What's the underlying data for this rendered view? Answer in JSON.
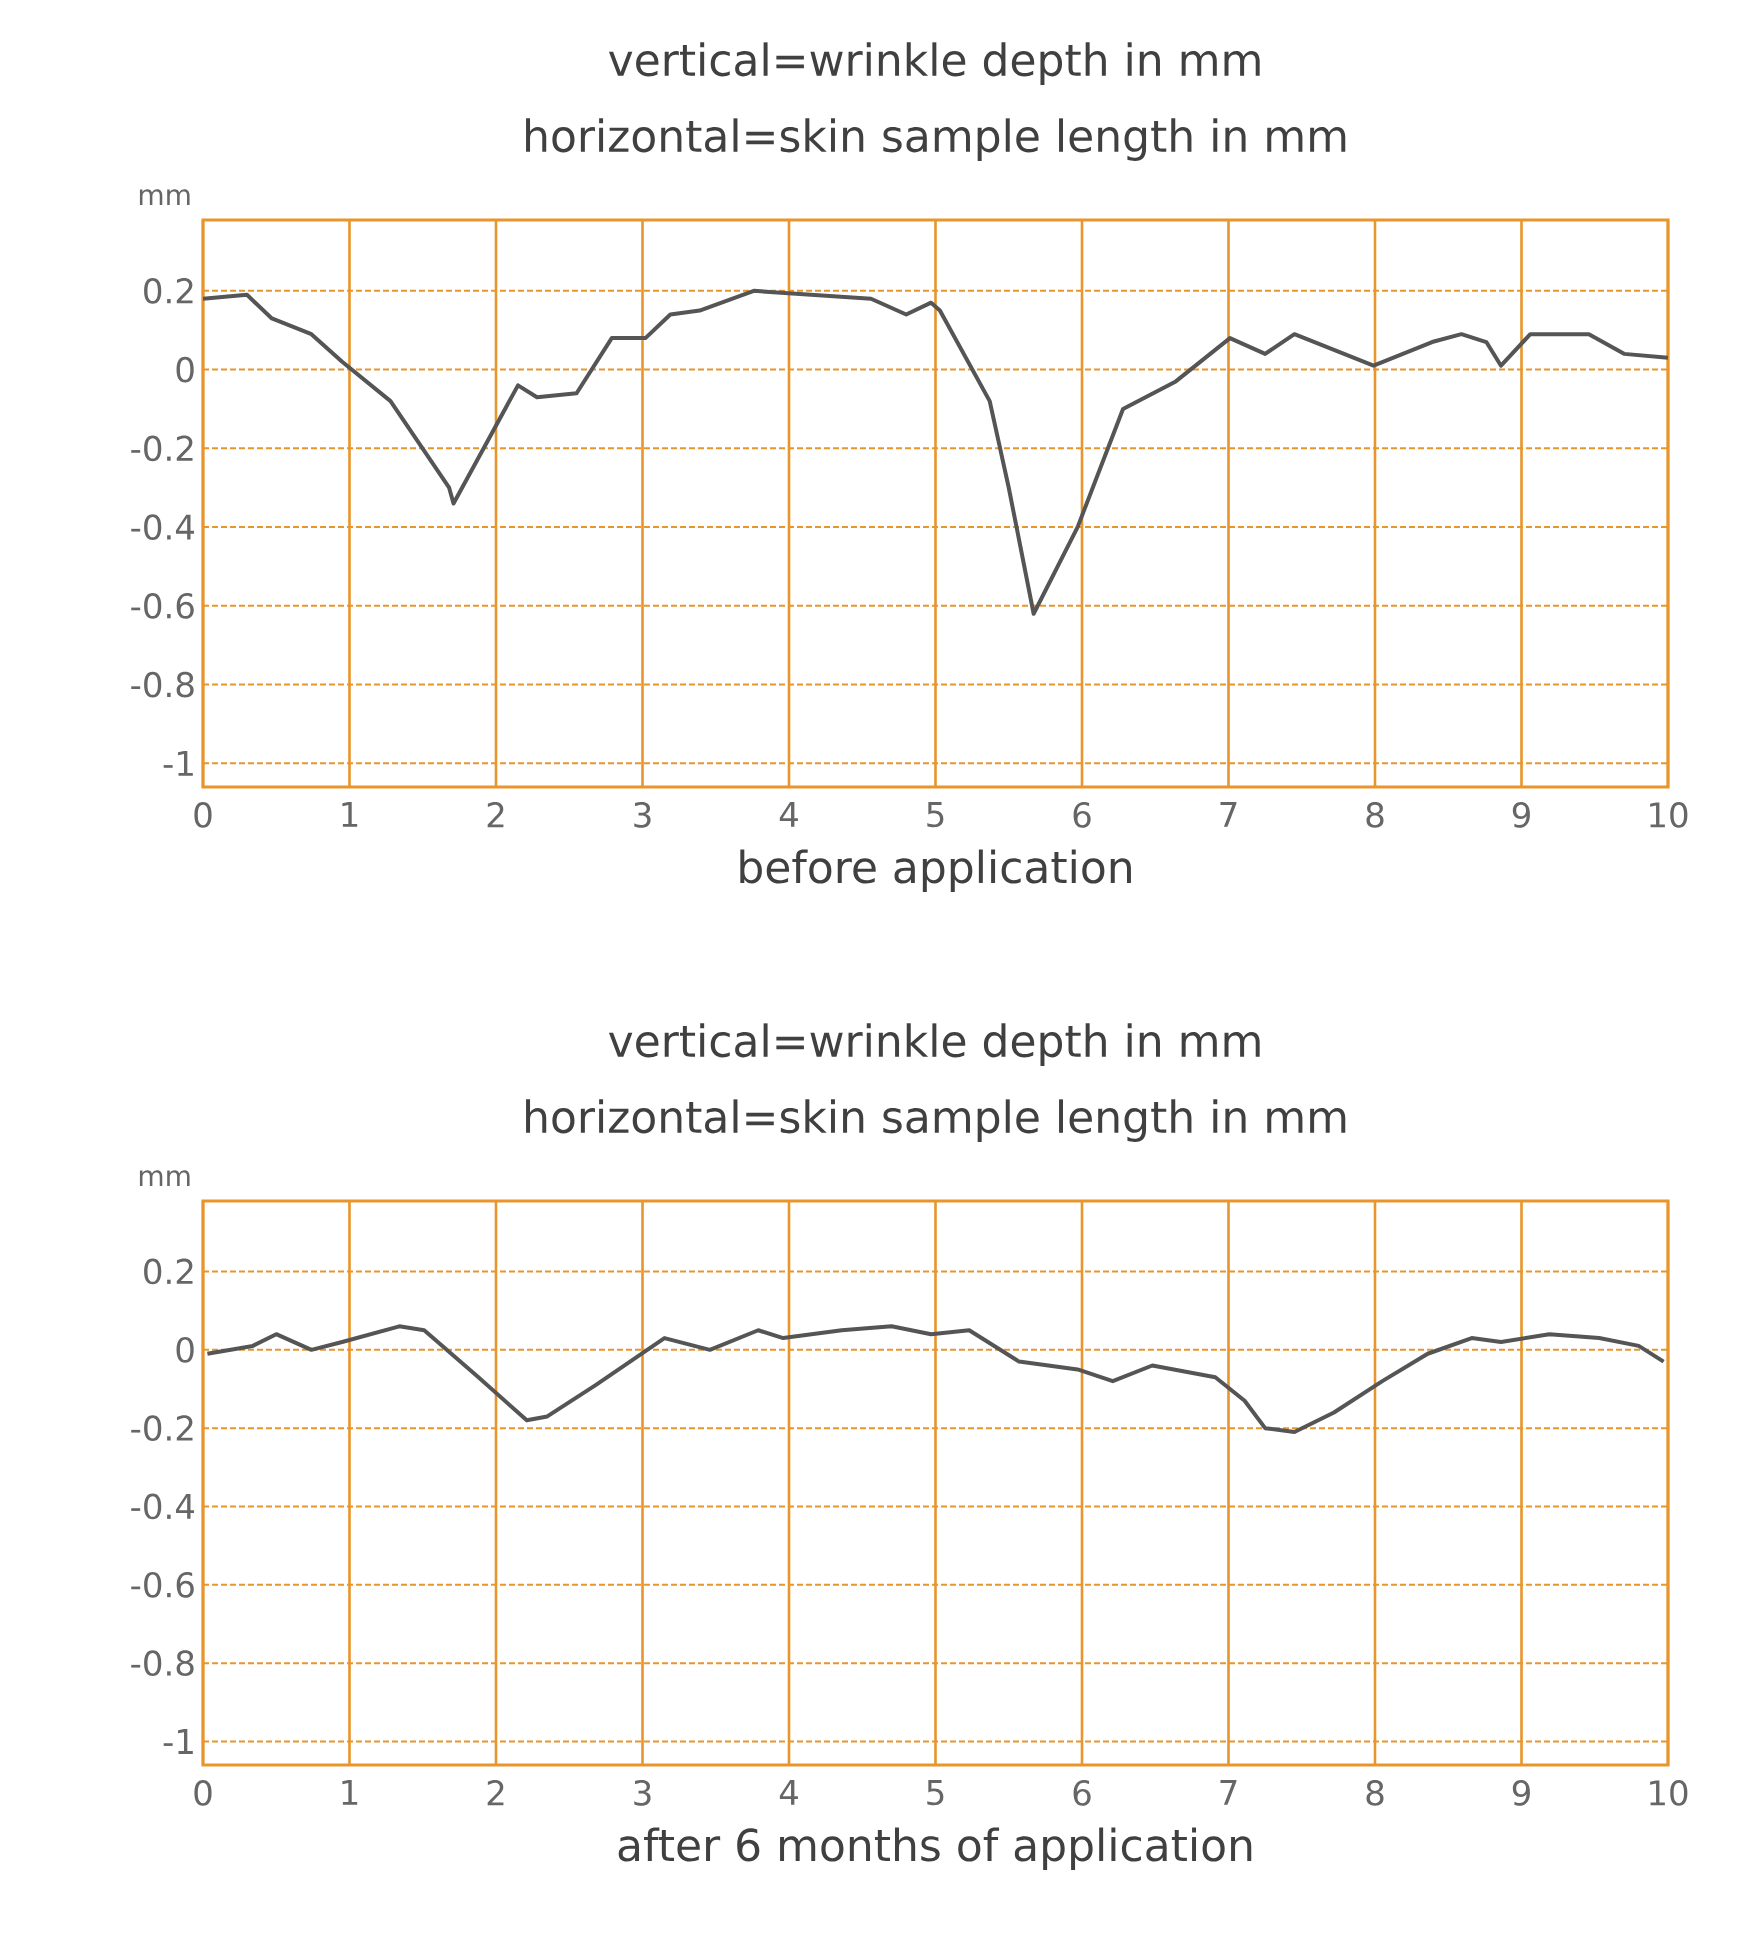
{
  "chart_data": [
    {
      "type": "line",
      "title": "vertical=wrinkle depth  in mm",
      "subtitle": "horizontal=skin sample length in mm",
      "xlabel": "before  application",
      "ylabel": "mm",
      "color": "#555555",
      "grid": true,
      "x": [
        0,
        0.3,
        0.47,
        0.74,
        0.95,
        1.28,
        1.68,
        1.71,
        2.15,
        2.28,
        2.55,
        2.79,
        3.02,
        3.19,
        3.39,
        3.76,
        4.56,
        4.8,
        4.97,
        5.03,
        5.37,
        5.5,
        5.67,
        5.97,
        6.28,
        6.64,
        7.01,
        7.25,
        7.45,
        7.99,
        8.39,
        8.59,
        8.76,
        8.86,
        9.06,
        9.46,
        9.7,
        10
      ],
      "values": [
        0.18,
        0.19,
        0.13,
        0.09,
        0.02,
        -0.08,
        -0.3,
        -0.34,
        -0.04,
        -0.07,
        -0.06,
        0.08,
        0.08,
        0.14,
        0.15,
        0.2,
        0.18,
        0.14,
        0.17,
        0.15,
        -0.08,
        -0.3,
        -0.62,
        -0.4,
        -0.1,
        -0.03,
        0.08,
        0.04,
        0.09,
        0.01,
        0.07,
        0.09,
        0.07,
        0.01,
        0.09,
        0.09,
        0.04,
        0.03
      ],
      "xlim": [
        0,
        10
      ],
      "ylim": [
        -1.06,
        0.38
      ],
      "xticks": [
        0,
        1,
        2,
        3,
        4,
        5,
        6,
        7,
        8,
        9,
        10
      ],
      "yticks": [
        0.2,
        0,
        -0.2,
        -0.4,
        -0.6,
        -0.8,
        -1
      ]
    },
    {
      "type": "line",
      "title": "vertical=wrinkle depth  in mm",
      "subtitle": "horizontal=skin sample length in mm",
      "xlabel": "after 6 months of application",
      "ylabel": "mm",
      "color": "#555555",
      "grid": true,
      "x": [
        0.03,
        0.34,
        0.5,
        0.74,
        0.95,
        1.34,
        1.51,
        1.88,
        2.21,
        2.35,
        2.68,
        3.15,
        3.46,
        3.79,
        3.96,
        4.36,
        4.7,
        4.97,
        5.23,
        5.57,
        5.97,
        6.21,
        6.48,
        6.91,
        7.11,
        7.25,
        7.45,
        7.72,
        8.05,
        8.36,
        8.66,
        8.86,
        9.19,
        9.53,
        9.8,
        9.97
      ],
      "values": [
        -0.01,
        0.01,
        0.04,
        0.0,
        0.02,
        0.06,
        0.05,
        -0.07,
        -0.18,
        -0.17,
        -0.09,
        0.03,
        0.0,
        0.05,
        0.03,
        0.05,
        0.06,
        0.04,
        0.05,
        -0.03,
        -0.05,
        -0.08,
        -0.04,
        -0.07,
        -0.13,
        -0.2,
        -0.21,
        -0.16,
        -0.08,
        -0.01,
        0.03,
        0.02,
        0.04,
        0.03,
        0.01,
        -0.03
      ],
      "xlim": [
        0,
        10
      ],
      "ylim": [
        -1.06,
        0.38
      ],
      "xticks": [
        0,
        1,
        2,
        3,
        4,
        5,
        6,
        7,
        8,
        9,
        10
      ],
      "yticks": [
        0.2,
        0,
        -0.2,
        -0.4,
        -0.6,
        -0.8,
        -1
      ]
    }
  ]
}
